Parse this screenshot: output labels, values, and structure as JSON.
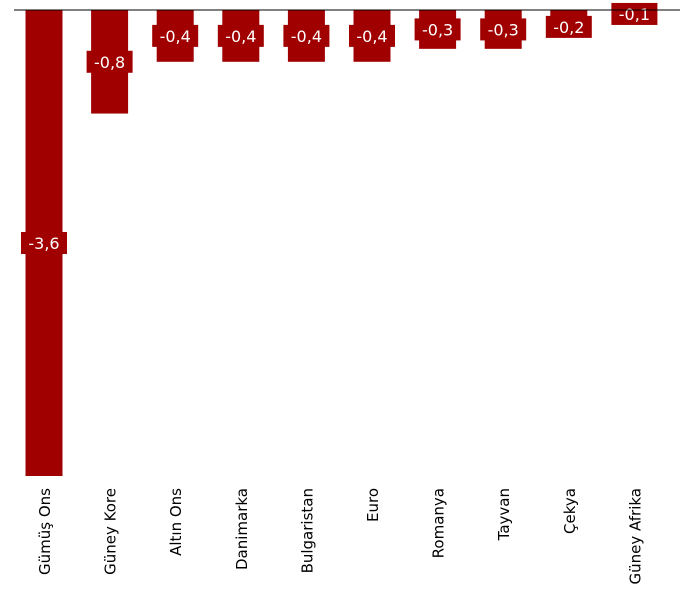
{
  "colors": {
    "bar": "#a00000",
    "label_text": "#ffffff",
    "axis": "#000000"
  },
  "chart_data": {
    "type": "bar",
    "categories": [
      "Gümüş Ons",
      "Güney Kore",
      "Altın Ons",
      "Danimarka",
      "Bulgaristan",
      "Euro",
      "Romanya",
      "Tayvan",
      "Çekya",
      "Güney Afrika"
    ],
    "values": [
      -3.6,
      -0.8,
      -0.4,
      -0.4,
      -0.4,
      -0.4,
      -0.3,
      -0.3,
      -0.2,
      -0.1
    ],
    "data_labels": [
      "-3,6",
      "-0,8",
      "-0,4",
      "-0,4",
      "-0,4",
      "-0,4",
      "-0,3",
      "-0,3",
      "-0,2",
      "-0,1"
    ],
    "title": "",
    "xlabel": "",
    "ylabel": "",
    "ylim": [
      -3.6,
      0
    ],
    "grid": false,
    "legend": "none"
  }
}
